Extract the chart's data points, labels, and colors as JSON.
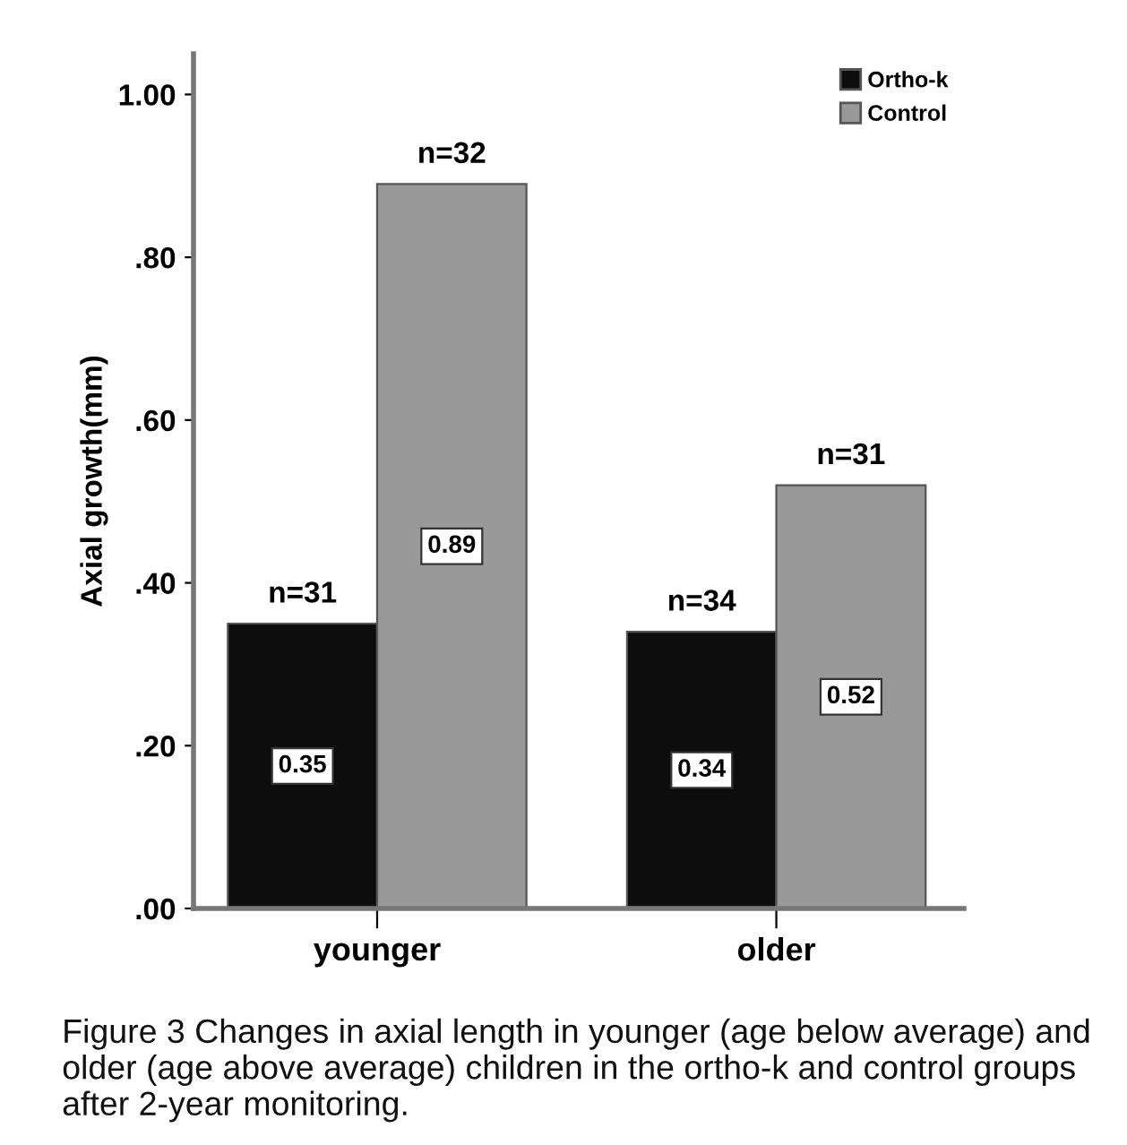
{
  "chart_data": {
    "type": "bar",
    "ylabel": "Axial growth(mm)",
    "categories": [
      "younger",
      "older"
    ],
    "series": [
      {
        "name": "Ortho-k",
        "color": "#0d0d0d",
        "values": [
          0.35,
          0.34
        ],
        "value_labels": [
          "0.35",
          "0.34"
        ]
      },
      {
        "name": "Control",
        "color": "#999999",
        "values": [
          0.89,
          0.52
        ],
        "value_labels": [
          "0.89",
          "0.52"
        ]
      }
    ],
    "ylim": [
      0,
      1.05
    ],
    "yticks": [
      {
        "value": 0,
        "label": ".00"
      },
      {
        "value": 0.2,
        "label": ".20"
      },
      {
        "value": 0.4,
        "label": ".40"
      },
      {
        "value": 0.6,
        "label": ".60"
      },
      {
        "value": 0.8,
        "label": ".80"
      },
      {
        "value": 1.0,
        "label": "1.00"
      }
    ],
    "annotations": [
      {
        "text": "n=31",
        "x": "younger",
        "y": 0.35
      },
      {
        "text": "n=32",
        "x": "younger",
        "y": 0.89
      },
      {
        "text": "n=34",
        "x": "older",
        "y": 0.34
      },
      {
        "text": "n=31",
        "x": "older",
        "y": 0.52
      },
      "Figure 3 Changes in axial length in younger (age below average) and older (age above average) children in the ortho-k and control groups after 2-year monitoring."
    ],
    "legend": "top right",
    "grid": false
  }
}
